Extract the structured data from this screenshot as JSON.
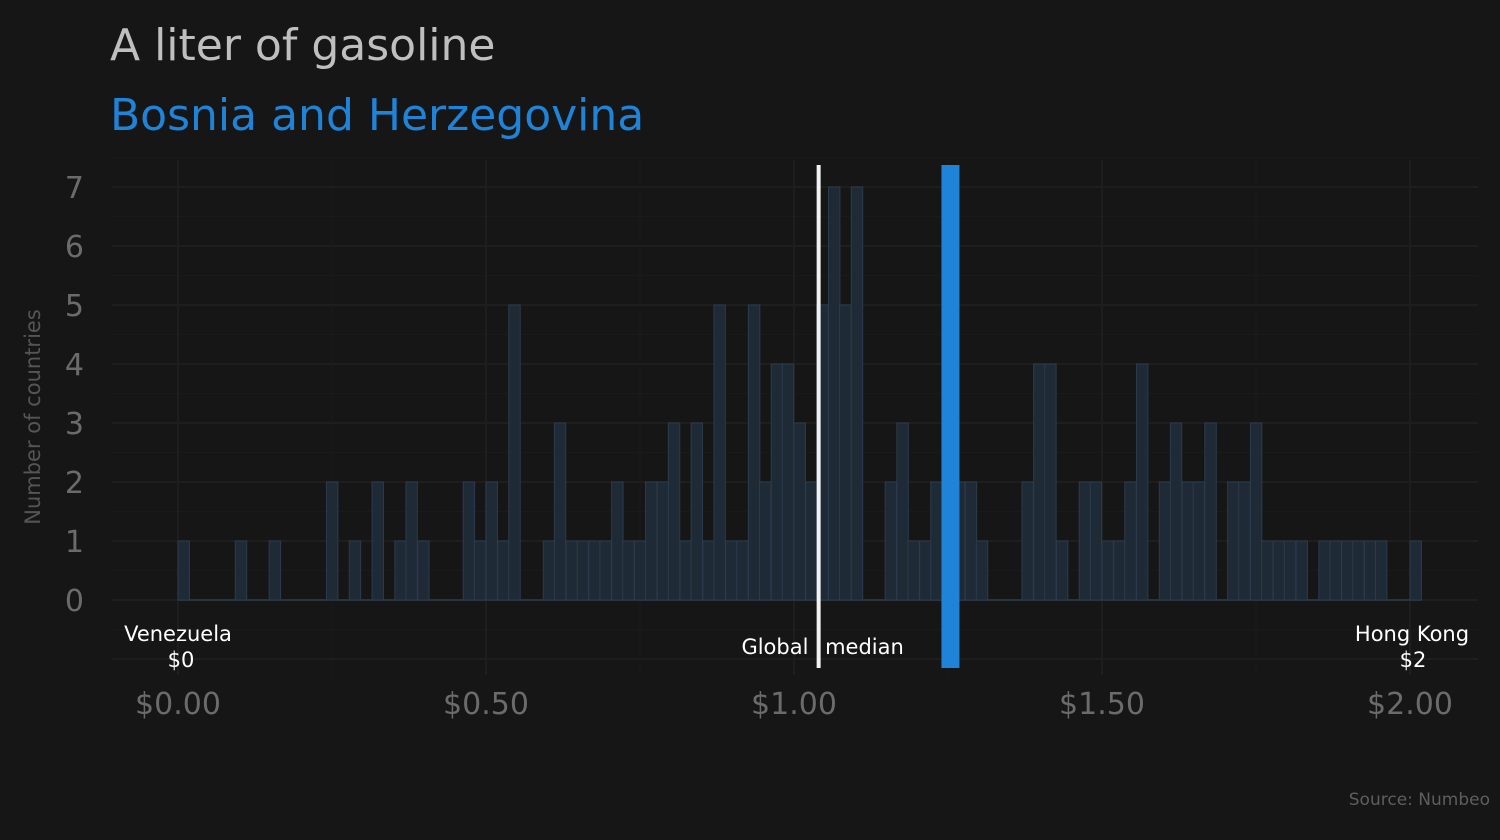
{
  "chart_data": {
    "type": "bar",
    "title": "A liter of gasoline",
    "subtitle": "Bosnia and Herzegovina",
    "ylabel": "Number of countries",
    "xlabel": "",
    "source": "Source: Numbeo",
    "xlim": [
      -0.05,
      2.05
    ],
    "ylim": [
      0,
      7.4
    ],
    "x_ticks": [
      0,
      0.5,
      1.0,
      1.5,
      2.0
    ],
    "x_tick_labels": [
      "$0.00",
      "$0.50",
      "$1.00",
      "$1.50",
      "$2.00"
    ],
    "y_ticks": [
      0,
      1,
      2,
      3,
      4,
      5,
      6,
      7
    ],
    "y_tick_labels": [
      "0",
      "1",
      "2",
      "3",
      "4",
      "5",
      "6",
      "7"
    ],
    "grid": true,
    "bin_width": 0.01852,
    "x": [
      0.0,
      0.093,
      0.148,
      0.241,
      0.278,
      0.315,
      0.352,
      0.37,
      0.389,
      0.463,
      0.481,
      0.5,
      0.519,
      0.537,
      0.593,
      0.611,
      0.63,
      0.648,
      0.667,
      0.685,
      0.704,
      0.722,
      0.741,
      0.759,
      0.778,
      0.796,
      0.815,
      0.833,
      0.852,
      0.87,
      0.889,
      0.907,
      0.926,
      0.944,
      0.963,
      0.981,
      1.0,
      1.019,
      1.037,
      1.056,
      1.074,
      1.093,
      1.148,
      1.167,
      1.185,
      1.204,
      1.222,
      1.241,
      1.259,
      1.278,
      1.296,
      1.315,
      1.37,
      1.389,
      1.407,
      1.426,
      1.444,
      1.463,
      1.481,
      1.5,
      1.519,
      1.537,
      1.556,
      1.574,
      1.593,
      1.611,
      1.63,
      1.648,
      1.667,
      1.685,
      1.704,
      1.722,
      1.741,
      1.759,
      1.778,
      1.796,
      1.815,
      1.852,
      1.87,
      1.889,
      1.907,
      1.926,
      1.944,
      2.0
    ],
    "values": [
      1,
      1,
      1,
      2,
      1,
      2,
      1,
      2,
      1,
      2,
      1,
      2,
      1,
      5,
      1,
      3,
      1,
      1,
      1,
      1,
      2,
      1,
      1,
      2,
      2,
      3,
      1,
      3,
      1,
      5,
      1,
      1,
      5,
      2,
      4,
      4,
      3,
      2,
      5,
      7,
      5,
      7,
      2,
      3,
      1,
      1,
      2,
      2,
      2,
      2,
      1,
      0,
      2,
      4,
      4,
      1,
      0,
      2,
      2,
      1,
      1,
      2,
      4,
      0,
      2,
      3,
      2,
      2,
      3,
      0,
      2,
      2,
      3,
      1,
      1,
      1,
      1,
      1,
      1,
      1,
      1,
      1,
      1,
      1
    ],
    "highlight": {
      "label": "Bosnia and Herzegovina",
      "x": 1.241,
      "color": "#1f83d8"
    },
    "reference_line": {
      "label": "Global median",
      "x": 1.04,
      "color": "#f2f2f2"
    },
    "annotations": [
      {
        "name": "Venezuela",
        "value_label": "$0",
        "x": 0.0
      },
      {
        "name": "Hong Kong",
        "value_label": "$2",
        "x": 2.0
      }
    ],
    "colors": {
      "background": "#161616",
      "bars": "#1e2a36",
      "bar_edge": "#2c3b4c",
      "grid_major": "#1e1e1e",
      "grid_minor": "#1a1a1a",
      "accent": "#1f83d8"
    }
  }
}
